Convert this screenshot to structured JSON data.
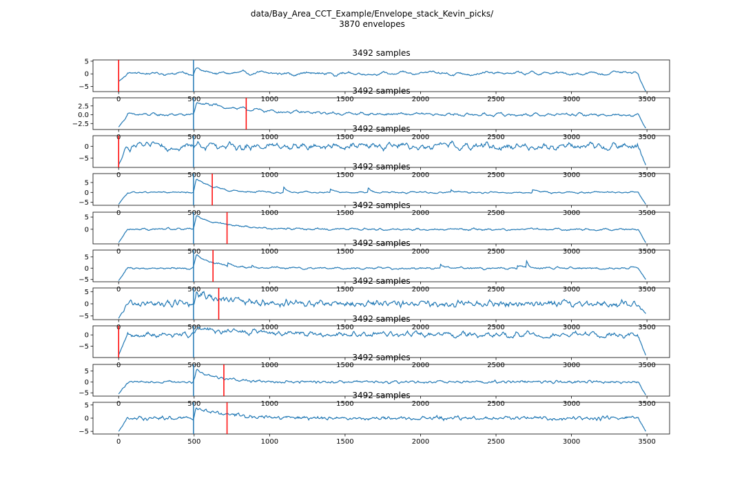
{
  "figure": {
    "suptitle_line1": "data/Bay_Area_CCT_Example/Envelope_stack_Kevin_picks/",
    "suptitle_line2": "3870 envelopes"
  },
  "colors": {
    "trace": "#1f77b4",
    "pick": "#ff0000",
    "axes": "#000000"
  },
  "chart_data": {
    "type": "line",
    "n_subplots": 10,
    "shared_xlim": [
      -170,
      3650
    ],
    "shared_x_ticks": [
      0,
      500,
      1000,
      1500,
      2000,
      2500,
      3000,
      3500
    ],
    "grid": false,
    "legend": "none",
    "subplots": [
      {
        "title": "3492 samples",
        "ylim": [
          -7,
          5.5
        ],
        "y_ticks": [
          5,
          0,
          -5
        ],
        "y_tick_labels": [
          "5",
          "0",
          "−5"
        ],
        "blue_marker_x": 496,
        "red_pick_x": 0,
        "pick_note": ""
      },
      {
        "title": "3492 samples",
        "ylim": [
          -4.2,
          4.8
        ],
        "y_ticks": [
          2.5,
          0,
          -2.5
        ],
        "y_tick_labels": [
          "2.5",
          "0.0",
          "−2.5"
        ],
        "blue_marker_x": 496,
        "red_pick_x": 845,
        "pick_note": ""
      },
      {
        "title": "3492 samples",
        "ylim": [
          -9,
          4.5
        ],
        "y_ticks": [
          0,
          -5
        ],
        "y_tick_labels": [
          "0",
          "−5"
        ],
        "blue_marker_x": 496,
        "red_pick_x": 0,
        "pick_note": ""
      },
      {
        "title": "3492 samples",
        "ylim": [
          -6.5,
          9.5
        ],
        "y_ticks": [
          5,
          0,
          -5
        ],
        "y_tick_labels": [
          "5",
          "0",
          "−5"
        ],
        "blue_marker_x": 496,
        "red_pick_x": 620,
        "pick_note": ""
      },
      {
        "title": "3492 samples",
        "ylim": [
          -6,
          7
        ],
        "y_ticks": [
          5,
          0
        ],
        "y_tick_labels": [
          "5",
          "0"
        ],
        "blue_marker_x": 496,
        "red_pick_x": 718,
        "pick_note": ""
      },
      {
        "title": "3492 samples",
        "ylim": [
          -6,
          8
        ],
        "y_ticks": [
          5,
          0,
          -5
        ],
        "y_tick_labels": [
          "5",
          "0",
          "−5"
        ],
        "blue_marker_x": 496,
        "red_pick_x": 625,
        "pick_note": ""
      },
      {
        "title": "3492 samples",
        "ylim": [
          -6.5,
          6.5
        ],
        "y_ticks": [
          5,
          0,
          -5
        ],
        "y_tick_labels": [
          "5",
          "0",
          "−5"
        ],
        "blue_marker_x": 496,
        "red_pick_x": 663,
        "pick_note": ""
      },
      {
        "title": "3492 samples",
        "ylim": [
          -10,
          4
        ],
        "y_ticks": [
          0,
          -5
        ],
        "y_tick_labels": [
          "0",
          "−5"
        ],
        "blue_marker_x": 496,
        "red_pick_x": 0,
        "pick_note": ""
      },
      {
        "title": "3492 samples",
        "ylim": [
          -6.5,
          8
        ],
        "y_ticks": [
          5,
          0,
          -5
        ],
        "y_tick_labels": [
          "5",
          "0",
          "−5"
        ],
        "blue_marker_x": 496,
        "red_pick_x": 697,
        "pick_note": ""
      },
      {
        "title": "3492 samples",
        "ylim": [
          -6,
          6
        ],
        "y_ticks": [
          5,
          0,
          -5
        ],
        "y_tick_labels": [
          "5",
          "0",
          "−5"
        ],
        "blue_marker_x": 496,
        "red_pick_x": 718,
        "pick_note": ""
      }
    ]
  }
}
